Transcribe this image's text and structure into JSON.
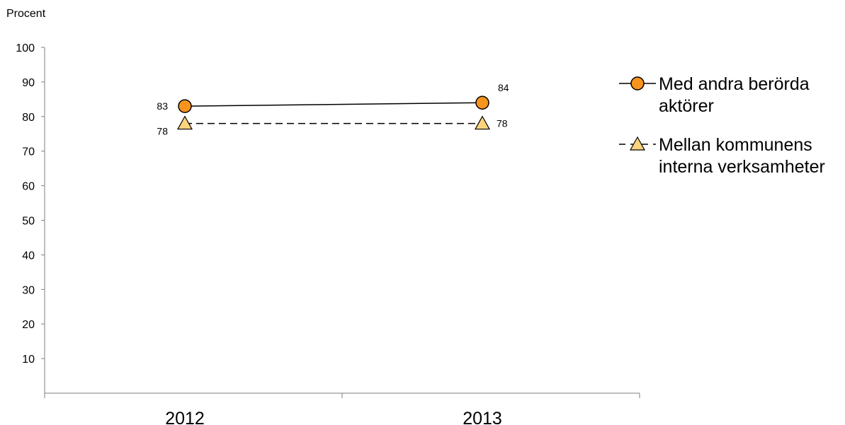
{
  "chart_data": {
    "type": "line",
    "ylabel": "Procent",
    "xlabel": "",
    "categories": [
      "2012",
      "2013"
    ],
    "ylim": [
      0,
      100
    ],
    "yticks": [
      10,
      20,
      30,
      40,
      50,
      60,
      70,
      80,
      90,
      100
    ],
    "grid": false,
    "legend_position": "right",
    "series": [
      {
        "name_lines": [
          "Med andra berörda",
          "aktörer"
        ],
        "values": [
          83,
          84
        ],
        "labels": [
          "83",
          "84"
        ],
        "marker": "circle",
        "line_style": "solid",
        "marker_color": "#F7941D",
        "line_color": "#000000"
      },
      {
        "name_lines": [
          "Mellan kommunens",
          "interna verksamheter"
        ],
        "values": [
          78,
          78
        ],
        "labels": [
          "78",
          "78"
        ],
        "marker": "triangle",
        "line_style": "dashed",
        "marker_color": "#FDD37C",
        "line_color": "#000000"
      }
    ]
  }
}
